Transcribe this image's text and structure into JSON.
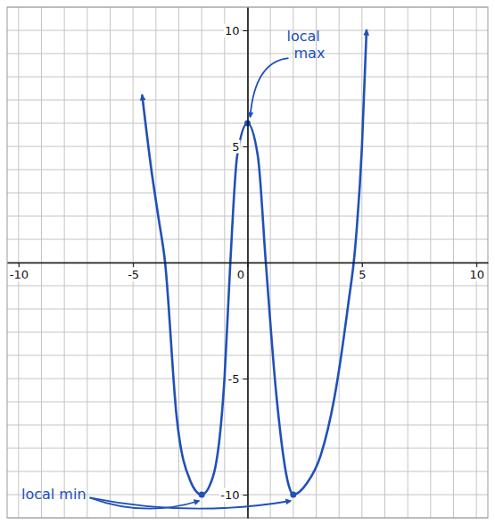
{
  "chart_data": {
    "type": "line",
    "x": [
      -4.6,
      -4.2,
      -3.9,
      -3.6,
      -3.1,
      -2.5,
      -2,
      -1.5,
      -1,
      -0.75,
      -0.45,
      0,
      0.45,
      0.8,
      1.25,
      1.8,
      2,
      2.6,
      3.2,
      3.8,
      4.4,
      4.7,
      5.0,
      5.2
    ],
    "series": [
      {
        "values": [
          7.2,
          4,
          2,
          0,
          -6.6,
          -9.4,
          -10,
          -9.2,
          -4.9,
          0,
          4.6,
          6,
          4.6,
          0,
          -5.6,
          -9.6,
          -10,
          -9.5,
          -8.3,
          -5.8,
          -1.8,
          0.6,
          5,
          10
        ],
        "color": "#2050b8",
        "marker": "none"
      }
    ],
    "xlim": [
      -10.5,
      10.5
    ],
    "ylim": [
      -11,
      11
    ],
    "xticks": [
      -10,
      -5,
      0,
      5,
      10
    ],
    "yticks": [
      -10,
      -5,
      5,
      10
    ],
    "grid": true,
    "annotations": [
      {
        "text": "local max",
        "points": [
          [
            0,
            6
          ]
        ]
      },
      {
        "text": "local min",
        "points": [
          [
            -2,
            -10
          ],
          [
            2,
            -10
          ]
        ]
      }
    ]
  }
}
